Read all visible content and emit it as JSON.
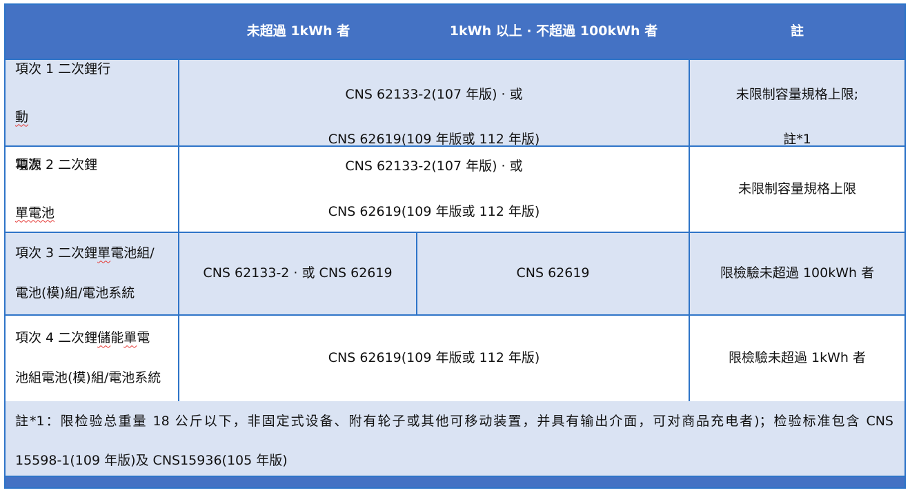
{
  "colors": {
    "header_bg": "#4472C4",
    "band_row_bg": "#DAE3F3",
    "white_row_bg": "#FFFFFF",
    "border": "#2E74C8",
    "header_text": "#FFFFFF",
    "body_text": "#111111",
    "spellcheck_squiggle": "#E53935",
    "bottom_bar_bg": "#4472C4"
  },
  "header": {
    "col1": "",
    "col2": "未超過 1kWh 者",
    "col3": "1kWh 以上 · 不超過 100kWh 者",
    "col4": "註"
  },
  "rows": [
    {
      "item_parts": [
        {
          "t": "項次 1 二次鋰行"
        },
        {
          "t": "動",
          "m": true
        },
        {
          "t": "電源"
        }
      ],
      "standard_lines": [
        "CNS 62133-2(107 年版) · 或",
        "CNS 62619(109 年版或 112 年版)"
      ],
      "notes": [
        "未限制容量規格上限;",
        "註*1"
      ]
    },
    {
      "item_parts": [
        {
          "t": "項次 2 二次鋰"
        },
        {
          "t": "單電池",
          "m": true
        }
      ],
      "standard_lines": [
        "CNS 62133-2(107 年版) · 或",
        "CNS 62619(109 年版或 112 年版)"
      ],
      "notes": [
        "未限制容量規格上限"
      ]
    },
    {
      "item_lines": [
        [
          {
            "t": "項次 3 二次鋰"
          },
          {
            "t": "單",
            "m": true
          },
          {
            "t": "電池組/"
          }
        ],
        [
          {
            "t": "電池(模)組/電池系統"
          }
        ]
      ],
      "standard_a": "CNS 62133-2 · 或 CNS 62619",
      "standard_b": "CNS 62619",
      "notes": [
        "限檢驗未超過 100kWh 者"
      ]
    },
    {
      "item_lines": [
        [
          {
            "t": "項次 4 二次鋰"
          },
          {
            "t": "儲",
            "m": true
          },
          {
            "t": "能"
          },
          {
            "t": "單",
            "m": true
          },
          {
            "t": "電"
          }
        ],
        [
          {
            "t": "池組電池(模)組/電池系統"
          }
        ]
      ],
      "standard_lines": [
        "CNS 62619(109 年版或 112 年版)"
      ],
      "notes": [
        "限檢驗未超過 1kWh 者"
      ]
    }
  ],
  "footnote_lines": [
    "註*1：限检验总重量 18 公斤以下，非固定式设备、附有轮子或其他可移动装置，并具有输出介面，可对商品充电者)；检验标准包含 CNS",
    "15598-1(109 年版)及 CNS15936(105 年版)"
  ]
}
